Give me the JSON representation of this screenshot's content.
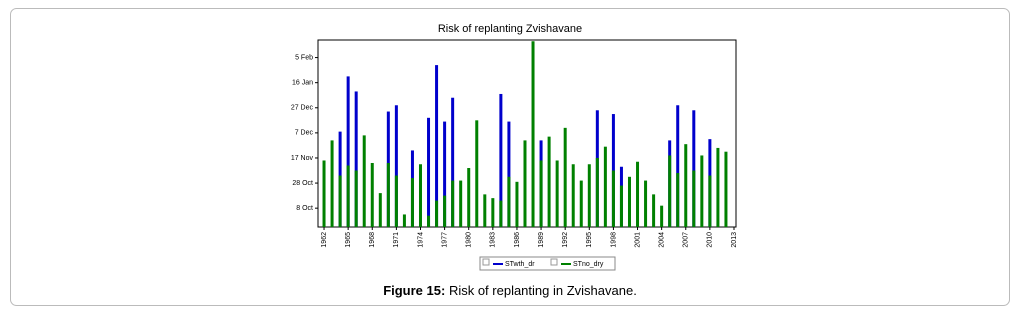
{
  "chart_data": {
    "type": "bar",
    "title": "Risk of replanting  Zvishavane",
    "x": [
      1962,
      1963,
      1964,
      1965,
      1966,
      1967,
      1968,
      1969,
      1970,
      1971,
      1972,
      1973,
      1974,
      1975,
      1976,
      1977,
      1978,
      1979,
      1980,
      1981,
      1982,
      1983,
      1984,
      1985,
      1986,
      1987,
      1988,
      1989,
      1990,
      1991,
      1992,
      1993,
      1994,
      1995,
      1996,
      1997,
      1998,
      1999,
      2000,
      2001,
      2002,
      2003,
      2004,
      2005,
      2006,
      2007,
      2008,
      2009,
      2010,
      2011,
      2012
    ],
    "series": [
      {
        "name": "STwth_dr",
        "color": "#0000cc",
        "values": [
          null,
          null,
          69,
          113,
          101,
          null,
          null,
          null,
          85,
          90,
          null,
          54,
          null,
          80,
          122,
          77,
          96,
          null,
          null,
          null,
          null,
          null,
          99,
          77,
          null,
          null,
          null,
          62,
          null,
          null,
          null,
          null,
          null,
          null,
          86,
          null,
          83,
          41,
          null,
          null,
          null,
          null,
          null,
          62,
          90,
          null,
          86,
          null,
          63,
          null,
          null
        ]
      },
      {
        "name": "STno_dry",
        "color": "#008000",
        "values": [
          46,
          62,
          34,
          42,
          38,
          66,
          44,
          20,
          44,
          34,
          3,
          32,
          43,
          2,
          14,
          18,
          30,
          30,
          40,
          78,
          19,
          16,
          14,
          33,
          29,
          62,
          141,
          46,
          65,
          46,
          72,
          43,
          30,
          43,
          48,
          57,
          38,
          26,
          33,
          45,
          30,
          19,
          10,
          50,
          36,
          59,
          38,
          50,
          34,
          56,
          53
        ]
      }
    ],
    "xlim": [
      1961.25,
      2013.25
    ],
    "xticks": [
      1962,
      1965,
      1968,
      1971,
      1974,
      1977,
      1980,
      1983,
      1986,
      1989,
      1992,
      1995,
      1998,
      2001,
      2004,
      2007,
      2010,
      2013
    ],
    "ylim": [
      -7,
      142
    ],
    "yticks": [
      {
        "value": 8,
        "label": "8 Oct"
      },
      {
        "value": 28,
        "label": "28 Oct"
      },
      {
        "value": 48,
        "label": "17 Nov"
      },
      {
        "value": 68,
        "label": "7 Dec"
      },
      {
        "value": 88,
        "label": "27 Dec"
      },
      {
        "value": 108,
        "label": "16 Jan"
      },
      {
        "value": 128,
        "label": "5 Feb"
      }
    ],
    "grid": false,
    "legend": "bottom"
  },
  "caption": {
    "label": "Figure 15:",
    "text": "Risk of replanting in Zvishavane."
  }
}
